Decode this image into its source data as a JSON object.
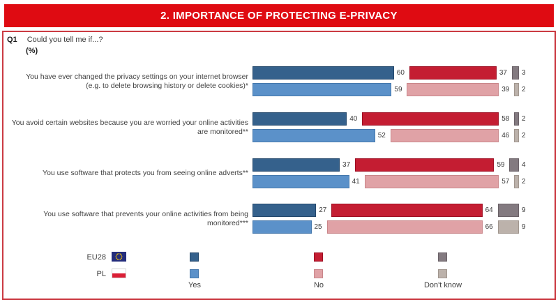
{
  "title": "2. IMPORTANCE OF PROTECTING E-PRIVACY",
  "question": {
    "id": "Q1",
    "text": "Could you tell me if...?",
    "unit": "(%)"
  },
  "colors": {
    "header_red": "#df0b12",
    "box_border_red": "#cb3b42",
    "eu28_yes": "#35618c",
    "pl_yes": "#5b91c9",
    "eu28_no": "#c41d32",
    "pl_no": "#e0a2a6",
    "eu28_dont_know": "#837a80",
    "pl_dont_know": "#bcb2ab"
  },
  "chart_data": {
    "type": "bar",
    "orientation": "horizontal",
    "stacked": true,
    "value_unit": "%",
    "axis_range": [
      0,
      100
    ],
    "series_labels": [
      "EU28",
      "PL"
    ],
    "response_options": [
      "Yes",
      "No",
      "Don't know"
    ],
    "groups": [
      {
        "label": "You have ever changed the privacy settings on your internet browser (e.g. to delete browsing history or delete cookies)*",
        "lines": [
          "You have ever changed the privacy settings on your internet browser",
          "(e.g. to delete browsing history or delete cookies)*"
        ],
        "eu28": {
          "yes": 60,
          "no": 37,
          "dk": 3
        },
        "pl": {
          "yes": 59,
          "no": 39,
          "dk": 2
        }
      },
      {
        "label": "You avoid certain websites because you are worried your online activities are monitored**",
        "lines": [
          "You avoid certain websites because you are worried your online activities",
          "are monitored**"
        ],
        "eu28": {
          "yes": 40,
          "no": 58,
          "dk": 2
        },
        "pl": {
          "yes": 52,
          "no": 46,
          "dk": 2
        }
      },
      {
        "label": "You use software that protects you from seeing online adverts**",
        "lines": [
          "You use software that protects you from seeing online adverts**"
        ],
        "eu28": {
          "yes": 37,
          "no": 59,
          "dk": 4
        },
        "pl": {
          "yes": 41,
          "no": 57,
          "dk": 2
        }
      },
      {
        "label": "You use software that prevents your online activities from being monitored***",
        "lines": [
          "You use software that prevents your online activities from being",
          "monitored***"
        ],
        "eu28": {
          "yes": 27,
          "no": 64,
          "dk": 9
        },
        "pl": {
          "yes": 25,
          "no": 66,
          "dk": 9
        }
      }
    ]
  },
  "legend": {
    "rows": [
      {
        "label": "EU28"
      },
      {
        "label": "PL"
      }
    ],
    "columns": [
      "Yes",
      "No",
      "Don't know"
    ]
  }
}
